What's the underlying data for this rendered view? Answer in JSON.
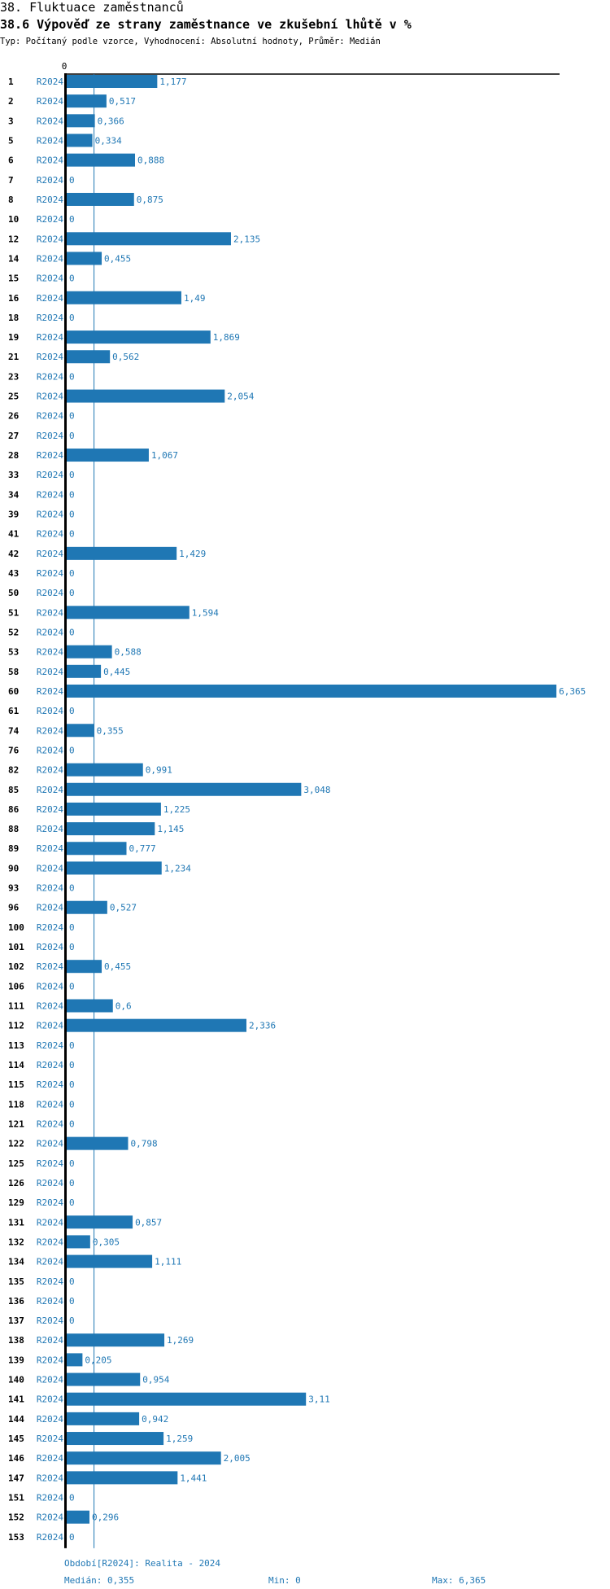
{
  "header": {
    "title": "38. Fluktuace zaměstnanců",
    "subtitle": "38.6 Výpověď ze strany zaměstnance ve zkušební lhůtě v %",
    "meta": "Typ: Počítaný podle vzorce, Vyhodnocení: Absolutní hodnoty, Průměr: Medián"
  },
  "chart_data": {
    "type": "bar",
    "orientation": "horizontal",
    "series_label": "R2024",
    "x_tick_label": "0",
    "median": 0.355,
    "bar_color": "#1f77b4",
    "categories": [
      "1",
      "2",
      "3",
      "5",
      "6",
      "7",
      "8",
      "10",
      "12",
      "14",
      "15",
      "16",
      "18",
      "19",
      "21",
      "23",
      "25",
      "26",
      "27",
      "28",
      "33",
      "34",
      "39",
      "41",
      "42",
      "43",
      "50",
      "51",
      "52",
      "53",
      "58",
      "60",
      "61",
      "74",
      "76",
      "82",
      "85",
      "86",
      "88",
      "89",
      "90",
      "93",
      "96",
      "100",
      "101",
      "102",
      "106",
      "111",
      "112",
      "113",
      "114",
      "115",
      "118",
      "121",
      "122",
      "125",
      "126",
      "129",
      "131",
      "132",
      "134",
      "135",
      "136",
      "137",
      "138",
      "139",
      "140",
      "141",
      "144",
      "145",
      "146",
      "147",
      "151",
      "152",
      "153"
    ],
    "values": [
      1.177,
      0.517,
      0.366,
      0.334,
      0.888,
      0,
      0.875,
      0,
      2.135,
      0.455,
      0,
      1.49,
      0,
      1.869,
      0.562,
      0,
      2.054,
      0,
      0,
      1.067,
      0,
      0,
      0,
      0,
      1.429,
      0,
      0,
      1.594,
      0,
      0.588,
      0.445,
      6.365,
      0,
      0.355,
      0,
      0.991,
      3.048,
      1.225,
      1.145,
      0.777,
      1.234,
      0,
      0.527,
      0,
      0,
      0.455,
      0,
      0.6,
      2.336,
      0,
      0,
      0,
      0,
      0,
      0.798,
      0,
      0,
      0,
      0.857,
      0.305,
      1.111,
      0,
      0,
      0,
      1.269,
      0.205,
      0.954,
      3.11,
      0.942,
      1.259,
      2.005,
      1.441,
      0,
      0.296,
      0
    ]
  },
  "footer": {
    "period": "Období[R2024]: Realita - 2024",
    "median": "Medián: 0,355",
    "min": "Min: 0",
    "max": "Max: 6,365"
  }
}
